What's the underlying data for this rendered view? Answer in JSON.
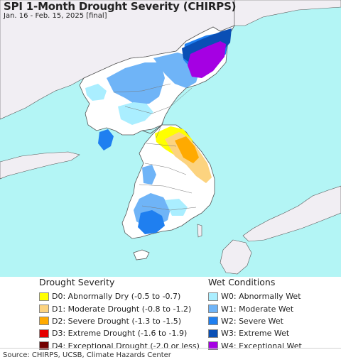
{
  "title": "SPI 1-Month Drought Severity (CHIRPS)",
  "subtitle": "Jan. 16 - Feb. 15, 2025 [final]",
  "colors": {
    "sea": "#b3f5f5",
    "land": "#ffffff",
    "neighbor_land": "#f1eef3",
    "border": "#555555"
  },
  "legend": {
    "drought": {
      "heading": "Drought Severity",
      "items": [
        {
          "label": "D0: Abnormally Dry (-0.5 to -0.7)",
          "color": "#ffff00"
        },
        {
          "label": "D1: Moderate Drought (-0.8 to -1.2)",
          "color": "#fcd37f"
        },
        {
          "label": "D2: Severe Drought (-1.3 to -1.5)",
          "color": "#ffaa00"
        },
        {
          "label": "D3: Extreme Drought (-1.6 to -1.9)",
          "color": "#e60000"
        },
        {
          "label": "D4: Exceptional Drought (-2.0 or less)",
          "color": "#730000"
        }
      ]
    },
    "wet": {
      "heading": "Wet Conditions",
      "items": [
        {
          "label": "W0: Abnormally Wet",
          "color": "#aaeeff"
        },
        {
          "label": "W1: Moderate Wet",
          "color": "#6fb4f7"
        },
        {
          "label": "W2: Severe Wet",
          "color": "#1f7ff0"
        },
        {
          "label": "W3: Extreme Wet",
          "color": "#0a4fb5"
        },
        {
          "label": "W4: Exceptional Wet",
          "color": "#a500e3"
        }
      ]
    }
  },
  "source": "Source: CHIRPS, UCSB, Climate Hazards Center"
}
